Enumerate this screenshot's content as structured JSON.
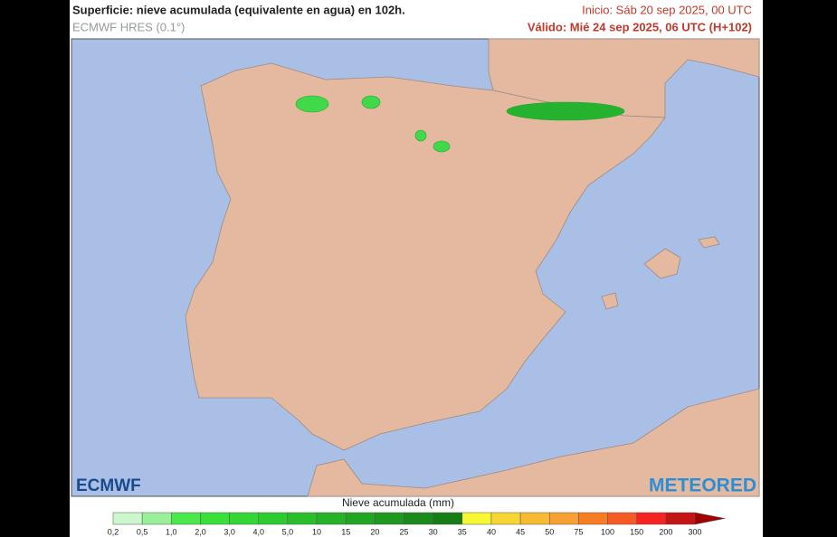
{
  "header": {
    "title": "Superficie: nieve acumulada (equivalente en agua) en 102h.",
    "model": "ECMWF HRES (0.1°)",
    "start": "Inicio: Sáb 20 sep 2025, 00 UTC",
    "valid": "Válido: Mié 24 sep 2025, 06 UTC (H+102)"
  },
  "logos": {
    "left": "ECMWF",
    "right": "METEORED"
  },
  "legend": {
    "title": "Nieve acumulada (mm)",
    "labels": [
      "0,2",
      "0,5",
      "1,0",
      "2,0",
      "3,0",
      "4,0",
      "5,0",
      "10",
      "15",
      "20",
      "25",
      "30",
      "35",
      "40",
      "45",
      "50",
      "75",
      "100",
      "150",
      "200",
      "300"
    ]
  }
}
